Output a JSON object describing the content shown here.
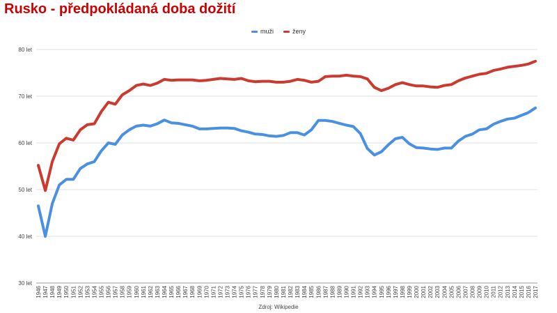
{
  "title": "Rusko - předpokládaná doba dožití",
  "source": "Zdroj: Wikipedie",
  "colors": {
    "muzi": "#4a90e2",
    "zeny": "#cc3a2f",
    "grid": "#e0e0e0",
    "title": "#cc0000"
  },
  "chart_data": {
    "type": "line",
    "title": "Rusko - předpokládaná doba dožití",
    "xlabel": "",
    "ylabel": "",
    "ylim": [
      30,
      80
    ],
    "yticks": [
      "30 let",
      "40 let",
      "50 let",
      "60 let",
      "70 let",
      "80 let"
    ],
    "grid": true,
    "legend": "top-center",
    "x": [
      "1946",
      "1947",
      "1948",
      "1949",
      "1950",
      "1951",
      "1952",
      "1953",
      "1954",
      "1955",
      "1956",
      "1957",
      "1958",
      "1959",
      "1960",
      "1961",
      "1962",
      "1963",
      "1964",
      "1965",
      "1966",
      "1967",
      "1968",
      "1969",
      "1970",
      "1971",
      "1972",
      "1973",
      "1974",
      "1975",
      "1976",
      "1977",
      "1978",
      "1979",
      "1980",
      "1981",
      "1982",
      "1983",
      "1984",
      "1985",
      "1986",
      "1987",
      "1988",
      "1989",
      "1990",
      "1991",
      "1992",
      "1993",
      "1994",
      "1995",
      "1996",
      "1997",
      "1998",
      "1999",
      "2000",
      "2001",
      "2002",
      "2003",
      "2004",
      "2005",
      "2006",
      "2007",
      "2008",
      "2009",
      "2010",
      "2011",
      "2012",
      "2013",
      "2014",
      "2015",
      "2016",
      "2017"
    ],
    "series": [
      {
        "name": "muži",
        "values": [
          46.5,
          40.0,
          47.0,
          51.0,
          52.2,
          52.2,
          54.5,
          55.5,
          56.0,
          58.3,
          60.0,
          59.7,
          61.7,
          62.8,
          63.6,
          63.8,
          63.6,
          64.1,
          64.9,
          64.3,
          64.2,
          63.9,
          63.6,
          63.0,
          63.0,
          63.1,
          63.2,
          63.2,
          63.1,
          62.6,
          62.3,
          61.9,
          61.8,
          61.5,
          61.4,
          61.6,
          62.2,
          62.2,
          61.7,
          62.8,
          64.8,
          64.8,
          64.6,
          64.2,
          63.8,
          63.5,
          62.0,
          58.8,
          57.4,
          58.1,
          59.6,
          60.9,
          61.2,
          59.8,
          59.0,
          58.9,
          58.7,
          58.6,
          58.9,
          58.9,
          60.4,
          61.4,
          61.9,
          62.8,
          63.0,
          64.0,
          64.6,
          65.1,
          65.3,
          65.9,
          66.5,
          67.5
        ]
      },
      {
        "name": "ženy",
        "values": [
          55.2,
          49.8,
          56.0,
          59.8,
          61.0,
          60.6,
          62.8,
          63.9,
          64.1,
          66.7,
          68.7,
          68.3,
          70.3,
          71.2,
          72.3,
          72.6,
          72.3,
          72.8,
          73.6,
          73.4,
          73.5,
          73.5,
          73.5,
          73.3,
          73.4,
          73.6,
          73.8,
          73.7,
          73.6,
          73.8,
          73.3,
          73.1,
          73.2,
          73.2,
          73.0,
          73.0,
          73.2,
          73.6,
          73.4,
          73.0,
          73.2,
          74.2,
          74.3,
          74.3,
          74.5,
          74.3,
          74.2,
          73.7,
          71.9,
          71.2,
          71.7,
          72.5,
          72.9,
          72.5,
          72.2,
          72.2,
          72.0,
          71.9,
          72.3,
          72.5,
          73.3,
          73.9,
          74.3,
          74.7,
          74.9,
          75.5,
          75.8,
          76.2,
          76.4,
          76.6,
          76.9,
          77.5
        ]
      }
    ]
  }
}
